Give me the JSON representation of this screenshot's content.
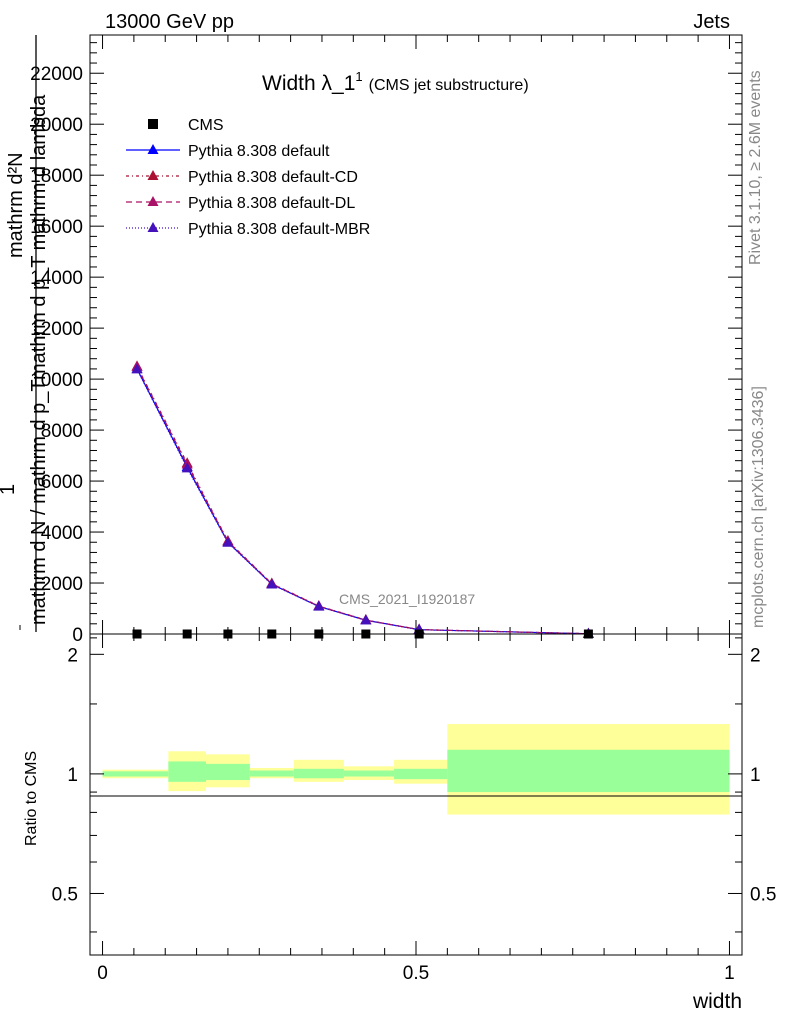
{
  "header": {
    "left": "13000 GeV pp",
    "right": "Jets"
  },
  "side_labels": {
    "rivet": "Rivet 3.1.10, ≥ 2.6M events",
    "mcplots": "mcplots.cern.ch [arXiv:1306.3436]"
  },
  "watermark": "CMS_2021_I1920187",
  "chart_data": [
    {
      "type": "line",
      "title": "Width λ_1",
      "title_superscript": "1",
      "subtitle": "(CMS jet substructure)",
      "ylabel_lines": [
        "mathrm d²N",
        "mathrm d p_T mathrm d lambda",
        "1",
        "mathrm d N / mathrm d p_T"
      ],
      "xlim": [
        -0.02,
        1.02
      ],
      "ylim": [
        0,
        23500
      ],
      "yticks": [
        0,
        2000,
        4000,
        6000,
        8000,
        10000,
        12000,
        14000,
        16000,
        18000,
        20000,
        22000
      ],
      "ytick_labels": [
        "0",
        "2000",
        "4000",
        "6000",
        "8000",
        "10000",
        "12000",
        "14000",
        "16000",
        "18000",
        "20000",
        "22000"
      ],
      "bin_edges": [
        0.0,
        0.105,
        0.165,
        0.235,
        0.305,
        0.385,
        0.465,
        0.55,
        1.0
      ],
      "x": [
        0.055,
        0.135,
        0.2,
        0.27,
        0.345,
        0.42,
        0.505,
        0.775
      ],
      "series": [
        {
          "name": "CMS",
          "color": "#000000",
          "marker": "square",
          "values": [
            0,
            0,
            0,
            0,
            0,
            0,
            0,
            0
          ]
        },
        {
          "name": "Pythia 8.308 default",
          "color": "#0000ff",
          "marker": "triangle",
          "dash": "",
          "values": [
            10400,
            6550,
            3600,
            1950,
            1080,
            540,
            170,
            10
          ]
        },
        {
          "name": "Pythia 8.308 default-CD",
          "color": "#aa1133",
          "marker": "triangle",
          "dash": "3,3,1,3",
          "values": [
            10500,
            6700,
            3650,
            1980,
            1100,
            550,
            175,
            11
          ]
        },
        {
          "name": "Pythia 8.308 default-DL",
          "color": "#aa1166",
          "marker": "triangle",
          "dash": "6,4",
          "values": [
            10480,
            6650,
            3630,
            1970,
            1090,
            545,
            172,
            10
          ]
        },
        {
          "name": "Pythia 8.308 default-MBR",
          "color": "#4411bb",
          "marker": "triangle",
          "dash": "1,2",
          "values": [
            10380,
            6500,
            3580,
            1940,
            1075,
            535,
            168,
            10
          ]
        }
      ]
    },
    {
      "type": "area",
      "ylabel": "Ratio to CMS",
      "xlabel": "width",
      "xlim": [
        -0.02,
        1.02
      ],
      "ylim": [
        0.35,
        2.25
      ],
      "xticks": [
        0,
        0.5,
        1
      ],
      "xtick_labels": [
        "0",
        "0.5",
        "1"
      ],
      "yticks": [
        0.5,
        1,
        2
      ],
      "ytick_labels": [
        "0.5",
        "1",
        "2"
      ],
      "bin_edges": [
        0.0,
        0.105,
        0.165,
        0.235,
        0.305,
        0.385,
        0.465,
        0.55,
        1.0
      ],
      "band_green": [
        [
          0.985,
          1.015
        ],
        [
          0.955,
          1.075
        ],
        [
          0.965,
          1.06
        ],
        [
          0.985,
          1.02
        ],
        [
          0.975,
          1.03
        ],
        [
          0.985,
          1.02
        ],
        [
          0.97,
          1.03
        ],
        [
          0.9,
          1.15
        ]
      ],
      "band_yellow": [
        [
          0.975,
          1.025
        ],
        [
          0.905,
          1.14
        ],
        [
          0.925,
          1.12
        ],
        [
          0.975,
          1.035
        ],
        [
          0.955,
          1.085
        ],
        [
          0.965,
          1.045
        ],
        [
          0.945,
          1.085
        ],
        [
          0.79,
          1.335
        ]
      ],
      "colors": {
        "green": "#99ff99",
        "yellow": "#ffff99"
      }
    }
  ]
}
